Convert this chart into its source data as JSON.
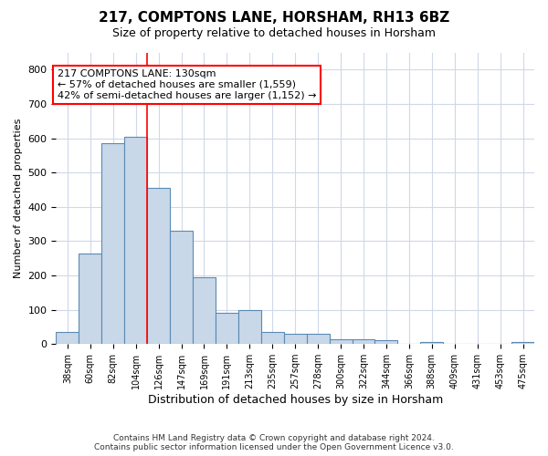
{
  "title": "217, COMPTONS LANE, HORSHAM, RH13 6BZ",
  "subtitle": "Size of property relative to detached houses in Horsham",
  "xlabel": "Distribution of detached houses by size in Horsham",
  "ylabel": "Number of detached properties",
  "footer_line1": "Contains HM Land Registry data © Crown copyright and database right 2024.",
  "footer_line2": "Contains public sector information licensed under the Open Government Licence v3.0.",
  "categories": [
    "38sqm",
    "60sqm",
    "82sqm",
    "104sqm",
    "126sqm",
    "147sqm",
    "169sqm",
    "191sqm",
    "213sqm",
    "235sqm",
    "257sqm",
    "278sqm",
    "300sqm",
    "322sqm",
    "344sqm",
    "366sqm",
    "388sqm",
    "409sqm",
    "431sqm",
    "453sqm",
    "475sqm"
  ],
  "values": [
    35,
    265,
    585,
    605,
    455,
    330,
    195,
    90,
    100,
    35,
    30,
    30,
    15,
    15,
    12,
    0,
    5,
    0,
    0,
    0,
    7
  ],
  "bar_color": "#c8d8e8",
  "bar_edge_color": "#5a8ab5",
  "bar_linewidth": 0.8,
  "grid_color": "#d0d8e8",
  "property_label": "217 COMPTONS LANE: 130sqm",
  "annotation_line1": "← 57% of detached houses are smaller (1,559)",
  "annotation_line2": "42% of semi-detached houses are larger (1,152) →",
  "vline_position": 3.5,
  "ylim": [
    0,
    850
  ],
  "yticks": [
    0,
    100,
    200,
    300,
    400,
    500,
    600,
    700,
    800
  ],
  "title_fontsize": 11,
  "subtitle_fontsize": 9,
  "annotation_fontsize": 8
}
